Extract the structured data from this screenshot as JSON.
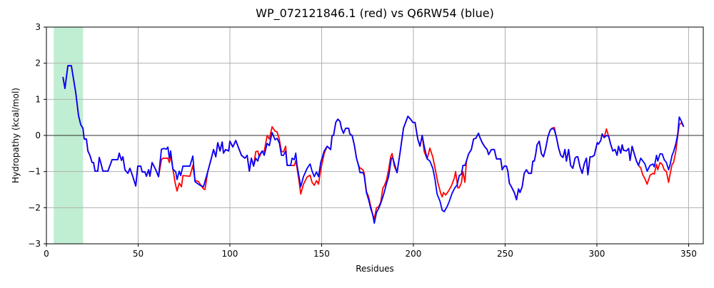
{
  "chart_data": {
    "type": "line",
    "title": "WP_072121846.1 (red) vs Q6RW54 (blue)",
    "xlabel": "Residues",
    "ylabel": "Hydropathy (kcal/mol)",
    "xlim": [
      0,
      358
    ],
    "ylim": [
      -3,
      3
    ],
    "xticks": [
      0,
      50,
      100,
      150,
      200,
      250,
      300,
      350
    ],
    "yticks": [
      {
        "value": -3,
        "label": "−3"
      },
      {
        "value": -2,
        "label": "−2"
      },
      {
        "value": -1,
        "label": "−1"
      },
      0,
      1,
      2,
      3
    ],
    "grid": true,
    "hline": 0,
    "highlight": [
      4,
      20
    ],
    "highlight_color": "#c0eed2",
    "series": [
      {
        "color": "#ff0000",
        "x": [
          9,
          10.1,
          11.7,
          13.6,
          16.0,
          17.5,
          18.7,
          19.9,
          20.6,
          21.8,
          22.6,
          23.7,
          24.9,
          25.7,
          26.5,
          28.0,
          28.8,
          29.6,
          30.8,
          33.5,
          35.8,
          38.9,
          39.7,
          40.9,
          41.7,
          42.8,
          44.4,
          45.5,
          47.1,
          48.7,
          49.8,
          51.4,
          52.2,
          53.7,
          54.5,
          55.7,
          56.4,
          57.6,
          59.6,
          61.1,
          62.7,
          63.5,
          66.2,
          67.0,
          67.7,
          68.9,
          70.1,
          71.2,
          72.4,
          73.6,
          74.4,
          78.2,
          79.8,
          81.0,
          82.9,
          85.6,
          86.4,
          88.0,
          89.9,
          91.1,
          92.3,
          93.4,
          94.6,
          95.8,
          96.5,
          97.7,
          99.3,
          100.0,
          101.6,
          103.2,
          104.7,
          106.3,
          108.2,
          109.4,
          110.6,
          111.7,
          112.9,
          114.1,
          115.2,
          116.0,
          117.6,
          118.7,
          120.3,
          121.5,
          123.0,
          124.6,
          125.7,
          126.9,
          128.1,
          129.2,
          130.4,
          131.2,
          133.1,
          135.1,
          135.9,
          136.6,
          137.8,
          138.6,
          140.1,
          142.1,
          143.7,
          144.8,
          146.0,
          147.2,
          148.3,
          149.5,
          151.4,
          153.0,
          154.9,
          155.7,
          156.5,
          157.7,
          158.8,
          160.0,
          160.8,
          161.9,
          163.1,
          164.7,
          165.4,
          166.6,
          167.8,
          169.0,
          170.1,
          170.9,
          172.5,
          173.2,
          174.4,
          175.6,
          176.7,
          177.9,
          178.7,
          179.9,
          181.0,
          182.2,
          183.4,
          184.1,
          185.3,
          186.5,
          187.6,
          188.4,
          189.6,
          191.1,
          192.7,
          194.6,
          197.0,
          198.5,
          199.7,
          200.9,
          202.4,
          203.6,
          204.8,
          205.9,
          207.5,
          209.0,
          210.6,
          211.8,
          213.3,
          214.9,
          215.7,
          216.4,
          217.6,
          219.0,
          220.7,
          222.3,
          223.0,
          224.2,
          225.0,
          226.2,
          227.0,
          228.1,
          228.9,
          230.1,
          231.6,
          232.8,
          234.0,
          235.5,
          236.3,
          237.5,
          239.0,
          240.2,
          241.0,
          242.5,
          244.1,
          245.3,
          247.6,
          248.4,
          249.5,
          250.7,
          251.5,
          252.3,
          253.4,
          255.0,
          256.2,
          257.3,
          258.1,
          259.3,
          260.4,
          261.6,
          262.8,
          264.3,
          265.1,
          265.9,
          266.7,
          267.4,
          268.6,
          269.8,
          270.9,
          272.1,
          273.3,
          274.5,
          275.6,
          276.8,
          278.0,
          279.1,
          280.3,
          281.5,
          282.6,
          283.4,
          284.6,
          285.7,
          286.9,
          288.1,
          288.9,
          289.6,
          290.8,
          292.0,
          293.1,
          294.3,
          295.1,
          296.3,
          297.4,
          298.6,
          300.2,
          300.9,
          302.1,
          302.9,
          304.0,
          305.2,
          306.4,
          307.5,
          308.7,
          309.9,
          311.0,
          311.8,
          313.0,
          313.8,
          314.5,
          316.1,
          317.3,
          318.1,
          319.2,
          320.4,
          321.6,
          322.7,
          323.9,
          325.1,
          326.2,
          327.4,
          329.0,
          330.5,
          331.3,
          332.5,
          333.2,
          334.4,
          335.6,
          336.7,
          337.9,
          339.1,
          339.8,
          341.0,
          341.8,
          343.0,
          344.1,
          344.9,
          346.1,
          347.3
        ],
        "values": [
          1.62,
          1.3,
          1.93,
          1.93,
          1.18,
          0.55,
          0.3,
          0.2,
          -0.1,
          -0.1,
          -0.43,
          -0.55,
          -0.75,
          -0.75,
          -0.99,
          -0.99,
          -0.61,
          -0.75,
          -0.99,
          -0.99,
          -0.67,
          -0.67,
          -0.49,
          -0.69,
          -0.59,
          -0.95,
          -1.05,
          -0.91,
          -1.14,
          -1.4,
          -0.85,
          -0.85,
          -1.01,
          -1.01,
          -1.13,
          -0.95,
          -1.13,
          -0.75,
          -0.95,
          -1.14,
          -0.67,
          -0.63,
          -0.63,
          -0.75,
          -0.55,
          -0.91,
          -1.3,
          -1.54,
          -1.32,
          -1.42,
          -1.11,
          -1.13,
          -0.83,
          -1.24,
          -1.28,
          -1.48,
          -1.5,
          -0.99,
          -0.63,
          -0.39,
          -0.59,
          -0.2,
          -0.43,
          -0.18,
          -0.49,
          -0.39,
          -0.43,
          -0.16,
          -0.32,
          -0.14,
          -0.34,
          -0.55,
          -0.63,
          -0.55,
          -0.99,
          -0.63,
          -0.85,
          -0.45,
          -0.43,
          -0.6,
          -0.43,
          -0.45,
          0.0,
          -0.1,
          0.24,
          0.12,
          0.1,
          -0.1,
          -0.45,
          -0.45,
          -0.3,
          -0.83,
          -0.83,
          -0.83,
          -0.7,
          -0.9,
          -1.3,
          -1.62,
          -1.35,
          -1.15,
          -1.1,
          -1.3,
          -1.38,
          -1.25,
          -1.35,
          -0.95,
          -0.5,
          -0.3,
          -0.39,
          0.0,
          0.0,
          0.36,
          0.45,
          0.39,
          0.2,
          0.06,
          0.2,
          0.2,
          0.04,
          0.0,
          -0.26,
          -0.63,
          -0.83,
          -0.9,
          -0.95,
          -1.05,
          -1.55,
          -1.7,
          -1.95,
          -2.2,
          -2.3,
          -2.0,
          -1.98,
          -1.85,
          -1.45,
          -1.4,
          -1.25,
          -0.95,
          -0.6,
          -0.5,
          -0.85,
          -1.03,
          -0.49,
          0.2,
          0.53,
          0.45,
          0.36,
          0.36,
          -0.1,
          -0.3,
          0.0,
          -0.45,
          -0.65,
          -0.35,
          -0.6,
          -0.9,
          -1.3,
          -1.6,
          -1.7,
          -1.58,
          -1.65,
          -1.55,
          -1.4,
          -1.18,
          -1.0,
          -1.45,
          -1.45,
          -1.3,
          -1.0,
          -1.3,
          -0.71,
          -0.51,
          -0.39,
          -0.1,
          -0.08,
          0.06,
          -0.06,
          -0.2,
          -0.32,
          -0.39,
          -0.53,
          -0.39,
          -0.39,
          -0.65,
          -0.65,
          -0.95,
          -0.85,
          -0.85,
          -0.99,
          -1.32,
          -1.42,
          -1.58,
          -1.78,
          -1.48,
          -1.58,
          -1.42,
          -1.05,
          -0.95,
          -1.05,
          -1.05,
          -0.71,
          -0.71,
          -0.51,
          -0.26,
          -0.16,
          -0.51,
          -0.59,
          -0.36,
          -0.04,
          0.14,
          0.2,
          0.22,
          -0.06,
          -0.34,
          -0.55,
          -0.61,
          -0.39,
          -0.71,
          -0.39,
          -0.83,
          -0.91,
          -0.63,
          -0.59,
          -0.59,
          -0.87,
          -1.05,
          -0.79,
          -0.63,
          -1.09,
          -0.59,
          -0.59,
          -0.55,
          -0.2,
          -0.24,
          -0.14,
          0.04,
          -0.06,
          0.18,
          -0.02,
          -0.24,
          -0.43,
          -0.39,
          -0.55,
          -0.3,
          -0.49,
          -0.26,
          -0.41,
          -0.43,
          -0.36,
          -0.69,
          -0.3,
          -0.51,
          -0.71,
          -0.83,
          -0.9,
          -1.1,
          -1.2,
          -1.35,
          -1.1,
          -1.05,
          -1.07,
          -0.8,
          -0.95,
          -0.75,
          -0.8,
          -0.95,
          -1.0,
          -1.3,
          -1.1,
          -0.8,
          -0.75,
          -0.45,
          0.0,
          0.3,
          0.35,
          0.24
        ]
      },
      {
        "color": "#0000ff",
        "x": [
          9,
          10.1,
          11.7,
          13.6,
          16.0,
          17.5,
          18.7,
          19.9,
          20.6,
          21.8,
          22.6,
          23.7,
          24.9,
          25.7,
          26.5,
          28.0,
          28.8,
          29.6,
          30.8,
          33.5,
          35.8,
          38.9,
          39.7,
          40.9,
          41.7,
          42.8,
          44.4,
          45.5,
          47.1,
          48.7,
          49.8,
          51.4,
          52.2,
          53.7,
          54.5,
          55.7,
          56.4,
          57.6,
          59.6,
          61.1,
          62.7,
          64.2,
          65.4,
          66.2,
          67.0,
          67.7,
          68.9,
          70.5,
          71.2,
          72.4,
          73.2,
          74.4,
          78.2,
          79.8,
          81.0,
          83.7,
          85.6,
          88.0,
          89.9,
          91.1,
          92.3,
          93.4,
          94.6,
          95.8,
          96.5,
          97.7,
          99.3,
          100.0,
          101.6,
          103.2,
          104.7,
          106.3,
          108.2,
          109.4,
          110.6,
          111.7,
          112.9,
          114.1,
          115.2,
          116.0,
          117.6,
          118.7,
          120.3,
          121.5,
          123.0,
          124.6,
          125.7,
          126.9,
          128.1,
          129.2,
          130.4,
          131.2,
          133.1,
          133.9,
          135.1,
          135.9,
          136.6,
          137.8,
          138.6,
          140.1,
          142.1,
          143.7,
          144.8,
          146.0,
          147.2,
          148.3,
          149.5,
          151.4,
          153.0,
          154.9,
          155.7,
          156.5,
          157.7,
          158.8,
          160.0,
          160.8,
          161.9,
          163.1,
          164.7,
          165.4,
          166.6,
          167.8,
          169.0,
          170.1,
          170.9,
          172.5,
          173.2,
          174.4,
          175.6,
          176.7,
          177.9,
          178.7,
          179.9,
          181.0,
          182.2,
          183.4,
          184.1,
          185.3,
          186.5,
          188.0,
          188.8,
          191.1,
          192.7,
          194.6,
          197.0,
          198.5,
          199.7,
          200.9,
          202.4,
          203.6,
          204.8,
          205.9,
          207.5,
          209.0,
          210.6,
          211.8,
          212.9,
          214.5,
          215.7,
          216.8,
          218.4,
          219.6,
          221.1,
          222.7,
          223.8,
          225.0,
          226.2,
          227.0,
          228.1,
          228.9,
          230.1,
          231.6,
          232.8,
          234.0,
          235.5,
          236.3,
          237.5,
          239.0,
          240.2,
          241.0,
          242.5,
          244.1,
          245.3,
          247.6,
          248.4,
          249.5,
          250.7,
          251.5,
          252.3,
          253.4,
          255.0,
          256.2,
          257.3,
          258.1,
          259.3,
          260.4,
          261.6,
          262.8,
          264.3,
          265.1,
          265.9,
          266.7,
          267.4,
          268.6,
          269.8,
          270.9,
          272.1,
          273.3,
          274.5,
          275.6,
          276.8,
          278.0,
          279.1,
          280.3,
          281.5,
          282.6,
          283.4,
          284.6,
          285.7,
          286.9,
          288.1,
          288.9,
          289.6,
          290.8,
          292.0,
          293.1,
          294.3,
          295.1,
          296.3,
          297.4,
          298.6,
          300.2,
          300.9,
          302.1,
          302.9,
          304.0,
          305.2,
          306.4,
          307.5,
          308.7,
          309.9,
          311.0,
          311.8,
          313.0,
          313.8,
          314.5,
          316.1,
          317.3,
          318.1,
          319.2,
          320.4,
          321.6,
          322.7,
          323.9,
          325.1,
          326.2,
          327.4,
          329.0,
          330.5,
          331.3,
          332.5,
          333.2,
          334.4,
          335.6,
          336.7,
          337.9,
          339.1,
          339.8,
          341.0,
          341.8,
          343.0,
          344.1,
          344.9,
          346.1,
          347.3
        ],
        "values": [
          1.62,
          1.3,
          1.93,
          1.93,
          1.18,
          0.55,
          0.3,
          0.2,
          -0.1,
          -0.1,
          -0.43,
          -0.55,
          -0.75,
          -0.75,
          -0.99,
          -0.99,
          -0.61,
          -0.75,
          -0.99,
          -0.99,
          -0.67,
          -0.67,
          -0.49,
          -0.69,
          -0.59,
          -0.95,
          -1.05,
          -0.91,
          -1.14,
          -1.4,
          -0.85,
          -0.85,
          -1.01,
          -1.01,
          -1.13,
          -0.95,
          -1.13,
          -0.75,
          -0.95,
          -1.14,
          -0.38,
          -0.36,
          -0.38,
          -0.32,
          -0.63,
          -0.43,
          -0.93,
          -1.01,
          -1.22,
          -0.99,
          -1.11,
          -0.85,
          -0.85,
          -0.57,
          -1.28,
          -1.38,
          -1.42,
          -0.99,
          -0.63,
          -0.39,
          -0.59,
          -0.2,
          -0.43,
          -0.18,
          -0.49,
          -0.39,
          -0.43,
          -0.16,
          -0.32,
          -0.14,
          -0.34,
          -0.55,
          -0.63,
          -0.55,
          -0.99,
          -0.63,
          -0.85,
          -0.63,
          -0.71,
          -0.55,
          -0.43,
          -0.55,
          -0.22,
          -0.28,
          0.08,
          -0.12,
          -0.08,
          -0.2,
          -0.55,
          -0.55,
          -0.43,
          -0.83,
          -0.83,
          -0.63,
          -0.67,
          -0.49,
          -0.83,
          -1.18,
          -1.42,
          -1.14,
          -0.91,
          -0.79,
          -0.99,
          -1.14,
          -1.01,
          -1.14,
          -0.75,
          -0.43,
          -0.3,
          -0.39,
          0.0,
          0.0,
          0.36,
          0.45,
          0.39,
          0.2,
          0.06,
          0.2,
          0.2,
          0.04,
          0.0,
          -0.26,
          -0.63,
          -0.83,
          -1.03,
          -1.03,
          -1.11,
          -1.58,
          -1.78,
          -2.01,
          -2.21,
          -2.43,
          -2.13,
          -2.03,
          -1.88,
          -1.7,
          -1.58,
          -1.34,
          -1.14,
          -0.63,
          -0.63,
          -1.03,
          -0.49,
          0.2,
          0.53,
          0.45,
          0.36,
          0.36,
          -0.1,
          -0.3,
          0.0,
          -0.3,
          -0.65,
          -0.71,
          -0.91,
          -1.22,
          -1.62,
          -1.82,
          -2.07,
          -2.11,
          -1.97,
          -1.82,
          -1.6,
          -1.44,
          -1.38,
          -1.11,
          -1.07,
          -0.83,
          -0.83,
          -0.71,
          -0.51,
          -0.39,
          -0.1,
          -0.08,
          0.06,
          -0.06,
          -0.2,
          -0.32,
          -0.39,
          -0.53,
          -0.39,
          -0.39,
          -0.65,
          -0.65,
          -0.95,
          -0.85,
          -0.85,
          -0.99,
          -1.32,
          -1.42,
          -1.58,
          -1.78,
          -1.48,
          -1.58,
          -1.42,
          -1.05,
          -0.95,
          -1.05,
          -1.05,
          -0.71,
          -0.71,
          -0.51,
          -0.26,
          -0.16,
          -0.51,
          -0.59,
          -0.36,
          -0.04,
          0.14,
          0.2,
          0.16,
          -0.06,
          -0.34,
          -0.55,
          -0.61,
          -0.39,
          -0.71,
          -0.39,
          -0.83,
          -0.91,
          -0.63,
          -0.59,
          -0.59,
          -0.87,
          -1.05,
          -0.79,
          -0.63,
          -1.09,
          -0.59,
          -0.59,
          -0.55,
          -0.2,
          -0.24,
          -0.14,
          0.04,
          -0.06,
          0.0,
          -0.02,
          -0.24,
          -0.43,
          -0.39,
          -0.55,
          -0.3,
          -0.49,
          -0.26,
          -0.41,
          -0.43,
          -0.36,
          -0.69,
          -0.3,
          -0.51,
          -0.71,
          -0.83,
          -0.63,
          -0.71,
          -0.79,
          -0.99,
          -0.83,
          -0.79,
          -0.87,
          -0.55,
          -0.71,
          -0.51,
          -0.51,
          -0.67,
          -0.75,
          -0.95,
          -0.83,
          -0.55,
          -0.45,
          -0.24,
          0.04,
          0.51,
          0.39,
          0.24
        ]
      }
    ]
  }
}
